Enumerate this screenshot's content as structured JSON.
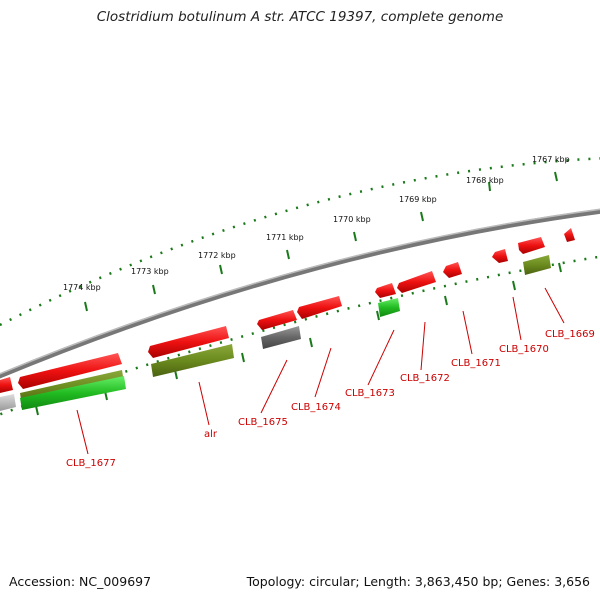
{
  "title": "Clostridium botulinum A str. ATCC 19397, complete genome",
  "footer": {
    "accession": "Accession: NC_009697",
    "summary": "Topology: circular; Length: 3,863,450 bp; Genes: 3,656"
  },
  "ticks": [
    {
      "label": "1767 kbp"
    },
    {
      "label": "1768 kbp"
    },
    {
      "label": "1769 kbp"
    },
    {
      "label": "1770 kbp"
    },
    {
      "label": "1771 kbp"
    },
    {
      "label": "1772 kbp"
    },
    {
      "label": "1773 kbp"
    },
    {
      "label": "1774 kbp"
    }
  ],
  "gene_labels": [
    {
      "text": "CLB_1669"
    },
    {
      "text": "CLB_1670"
    },
    {
      "text": "CLB_1671"
    },
    {
      "text": "CLB_1672"
    },
    {
      "text": "CLB_1673"
    },
    {
      "text": "CLB_1674"
    },
    {
      "text": "CLB_1675"
    },
    {
      "text": "alr"
    },
    {
      "text": "CLB_1677"
    }
  ],
  "colors": {
    "gene_red": "#ee1111",
    "gene_green": "#33cc33",
    "gene_olive": "#6b8a1e",
    "gene_gray": "#666666",
    "backbone": "#888888",
    "tick": "#1a7a1a",
    "label": "#cc0000"
  }
}
